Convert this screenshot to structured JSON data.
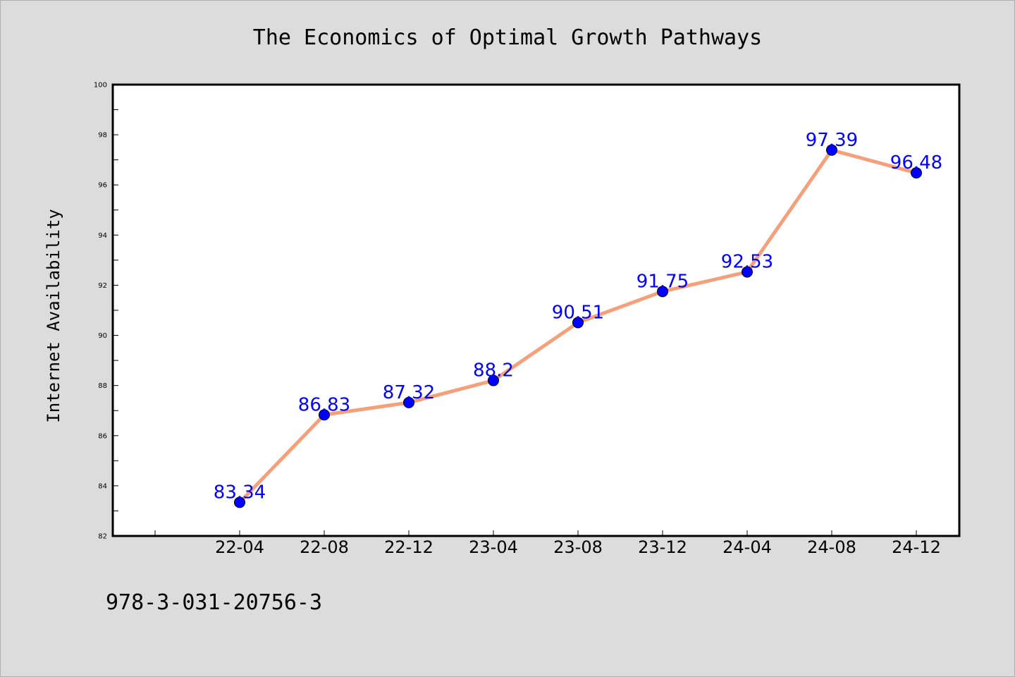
{
  "chart_data": {
    "type": "line",
    "title": "The Economics of Optimal Growth Pathways",
    "xlabel": "",
    "ylabel": "Internet Availability",
    "categories": [
      "22-04",
      "22-08",
      "22-12",
      "23-04",
      "23-08",
      "23-12",
      "24-04",
      "24-08",
      "24-12"
    ],
    "series": [
      {
        "values": [
          83.34,
          86.83,
          87.32,
          88.2,
          90.51,
          91.75,
          92.53,
          97.39,
          96.48
        ],
        "labels": [
          "83.34",
          "86.83",
          "87.32",
          "88.2",
          "90.51",
          "91.75",
          "92.53",
          "97.39",
          "96.48"
        ],
        "line_color": "#f5a07a",
        "marker_color": "#0000ff"
      }
    ],
    "ylim": [
      82,
      100
    ],
    "yticks": [
      "82",
      "84",
      "86",
      "88",
      "90",
      "92",
      "94",
      "96",
      "98",
      "100"
    ],
    "grid": false
  },
  "footer_text": "978-3-031-20756-3"
}
